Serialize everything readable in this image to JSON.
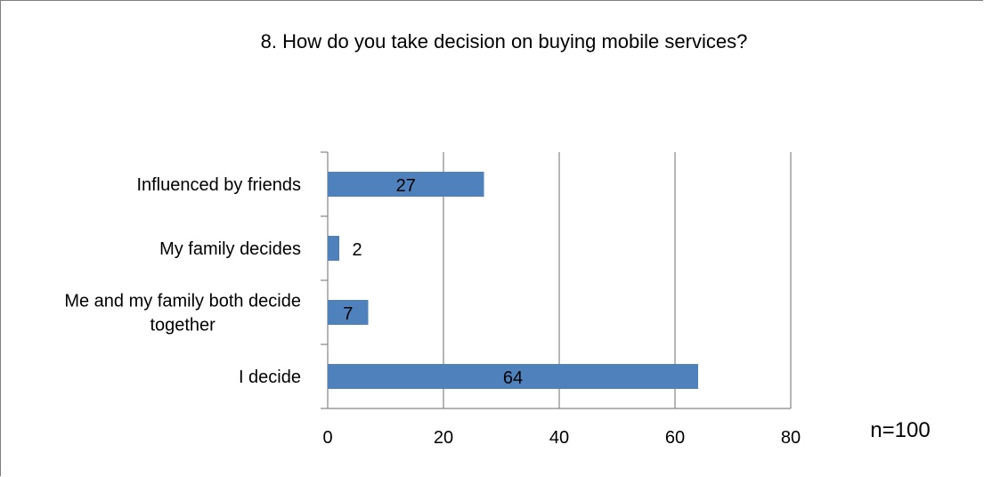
{
  "chart_data": {
    "type": "bar",
    "orientation": "horizontal",
    "title": "8. How do you take decision on buying mobile services?",
    "categories": [
      "Influenced by friends",
      "My family decides",
      "Me and my family both decide together",
      "I decide"
    ],
    "category_lines": [
      [
        "Influenced by friends"
      ],
      [
        "My family decides"
      ],
      [
        "Me and my family both decide",
        "together"
      ],
      [
        "I decide"
      ]
    ],
    "values": [
      27,
      2,
      7,
      64
    ],
    "xlim": [
      0,
      80
    ],
    "xticks": [
      0,
      20,
      40,
      60,
      80
    ],
    "grid": "vertical gridlines",
    "legend": "none",
    "bar_color": "#4f81bd",
    "data_labels": [
      "27",
      "2",
      "7",
      "64"
    ]
  },
  "annotation": "n=100"
}
